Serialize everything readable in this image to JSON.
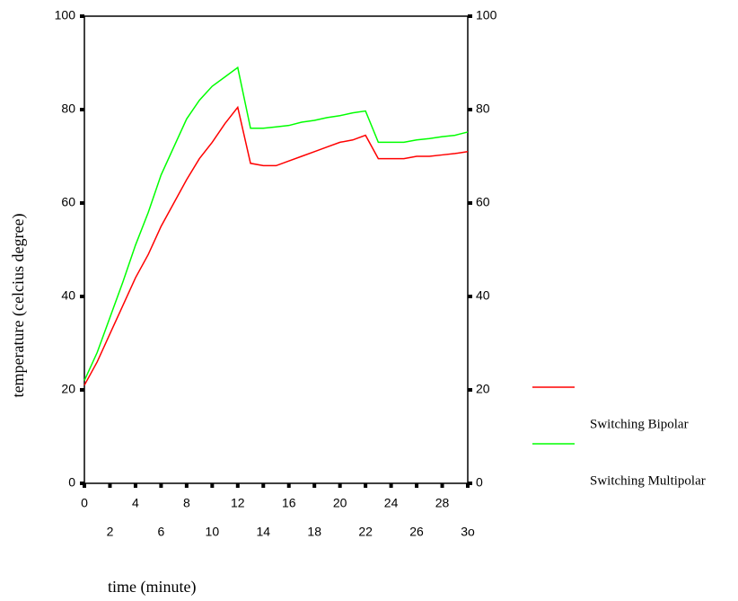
{
  "chart_data": {
    "type": "line",
    "x_label": "time (minute)",
    "y_label": "temperature  (celcius degree)",
    "x": [
      0,
      1,
      2,
      3,
      4,
      5,
      6,
      7,
      8,
      9,
      10,
      11,
      12,
      13,
      14,
      15,
      16,
      17,
      18,
      19,
      20,
      21,
      22,
      23,
      24,
      25,
      26,
      27,
      28,
      29,
      30
    ],
    "series": [
      {
        "name": "Switching Bipolar",
        "color": "#ff0000",
        "values": [
          21,
          26,
          32,
          38,
          44,
          49,
          55,
          60,
          65,
          69.5,
          73,
          77,
          80.5,
          68.5,
          68,
          68,
          69,
          70,
          71,
          72,
          73,
          73.5,
          74.5,
          69.5,
          69.5,
          69.5,
          70,
          70,
          70.3,
          70.6,
          71
        ]
      },
      {
        "name": "Switching Multipolar",
        "color": "#00ff00",
        "values": [
          22,
          28,
          35.5,
          43,
          51,
          58,
          66,
          72,
          78,
          82,
          85,
          87,
          89,
          76,
          76,
          76.3,
          76.6,
          77.3,
          77.7,
          78.3,
          78.7,
          79.3,
          79.7,
          73,
          73,
          73,
          73.5,
          73.8,
          74.2,
          74.5,
          75.2
        ]
      }
    ],
    "xlim": [
      0,
      30
    ],
    "xticks": [
      0,
      2,
      4,
      6,
      8,
      10,
      12,
      14,
      16,
      18,
      20,
      22,
      24,
      26,
      28,
      {
        "value": 30,
        "label": "3o"
      }
    ],
    "ylim": [
      0,
      100
    ],
    "yticks": [
      0,
      20,
      40,
      60,
      80,
      100
    ],
    "y2lim": [
      0,
      100
    ],
    "y2ticks": [
      0,
      20,
      40,
      60,
      80,
      100
    ]
  }
}
